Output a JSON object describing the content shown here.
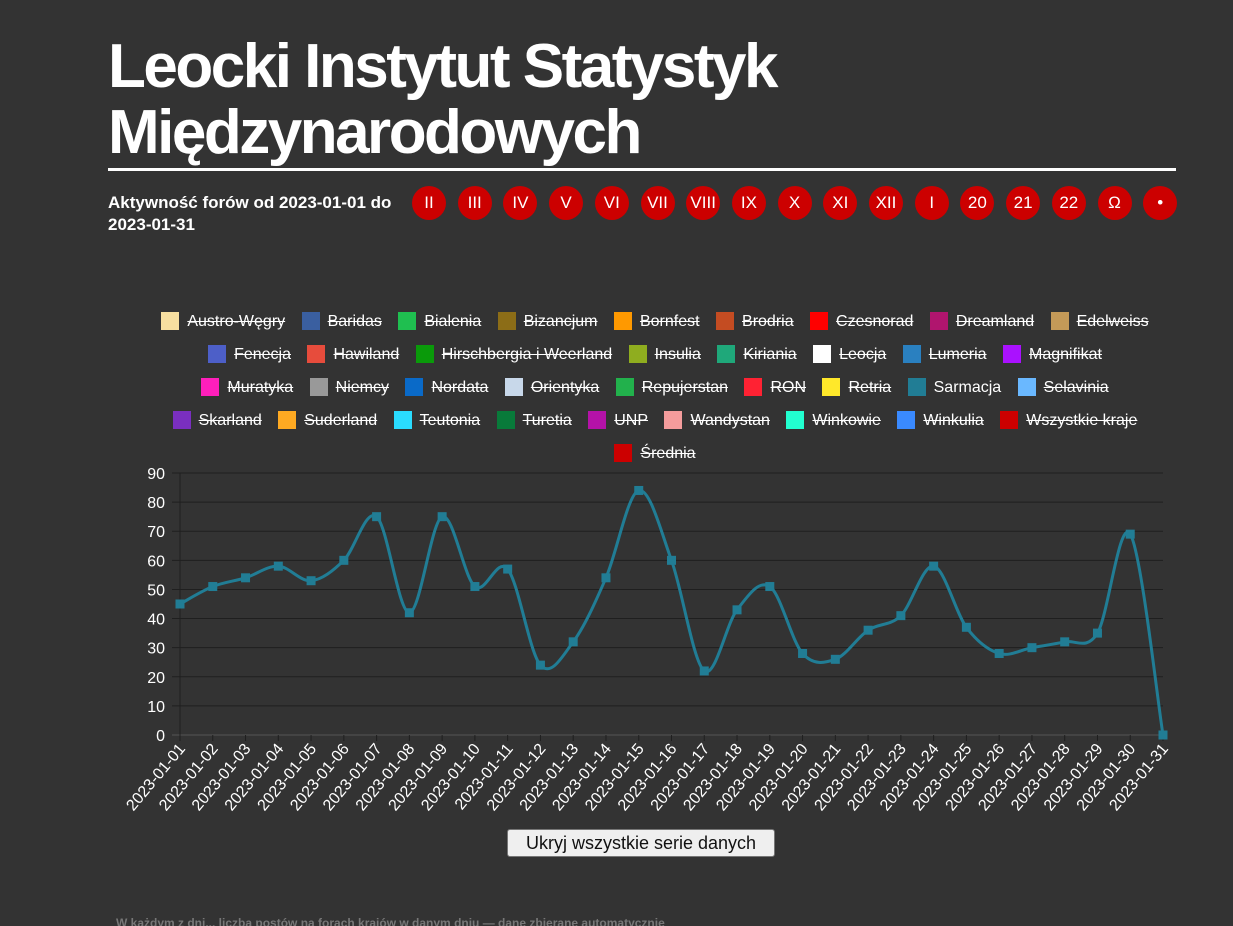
{
  "header": {
    "title_line1": "Leocki Instytut Statystyk",
    "title_line2": "Międzynarodowych",
    "subtitle": "Aktywność forów od 2023-01-01 do 2023-01-31"
  },
  "nav": {
    "items": [
      "II",
      "III",
      "IV",
      "V",
      "VI",
      "VII",
      "VIII",
      "IX",
      "X",
      "XI",
      "XII",
      "I",
      "20",
      "21",
      "22",
      "Ω",
      "•"
    ]
  },
  "colors": {
    "background": "#333333",
    "nav_red": "#cc0000",
    "grid": "#262626",
    "series_line": "#217d95"
  },
  "hide_all_label": "Ukryj wszystkie serie danych",
  "footer_text": "W każdym z dni... liczba postów na forach krajów w danym dniu — dane zbierane automatycznie",
  "chart_data": {
    "type": "line",
    "title": "",
    "xlabel": "",
    "ylabel": "",
    "ylim": [
      0,
      90
    ],
    "yticks": [
      0,
      10,
      20,
      30,
      40,
      50,
      60,
      70,
      80,
      90
    ],
    "grid": true,
    "legend_position": "top",
    "x": [
      "2023-01-01",
      "2023-01-02",
      "2023-01-03",
      "2023-01-04",
      "2023-01-05",
      "2023-01-06",
      "2023-01-07",
      "2023-01-08",
      "2023-01-09",
      "2023-01-10",
      "2023-01-11",
      "2023-01-12",
      "2023-01-13",
      "2023-01-14",
      "2023-01-15",
      "2023-01-16",
      "2023-01-17",
      "2023-01-18",
      "2023-01-19",
      "2023-01-20",
      "2023-01-21",
      "2023-01-22",
      "2023-01-23",
      "2023-01-24",
      "2023-01-25",
      "2023-01-26",
      "2023-01-27",
      "2023-01-28",
      "2023-01-29",
      "2023-01-30",
      "2023-01-31"
    ],
    "series": [
      {
        "name": "Sarmacja",
        "color": "#217d95",
        "values": [
          45,
          51,
          54,
          58,
          53,
          60,
          75,
          42,
          75,
          51,
          57,
          24,
          32,
          54,
          84,
          60,
          22,
          43,
          51,
          28,
          26,
          36,
          41,
          58,
          37,
          28,
          30,
          32,
          35,
          69,
          0
        ]
      }
    ],
    "legend": [
      {
        "name": "Austro-Węgry",
        "color": "#f7dfa0",
        "hidden": true
      },
      {
        "name": "Baridas",
        "color": "#3a5fa0",
        "hidden": true
      },
      {
        "name": "Bialenia",
        "color": "#1fbf50",
        "hidden": true
      },
      {
        "name": "Bizancjum",
        "color": "#8c6d17",
        "hidden": true
      },
      {
        "name": "Bornfest",
        "color": "#ff9900",
        "hidden": true
      },
      {
        "name": "Brodria",
        "color": "#c44c22",
        "hidden": true
      },
      {
        "name": "Czesnorad",
        "color": "#ff0000",
        "hidden": true
      },
      {
        "name": "Dreamland",
        "color": "#b0156e",
        "hidden": true
      },
      {
        "name": "Edelweiss",
        "color": "#c49a58",
        "hidden": true
      },
      {
        "name": "Fenecja",
        "color": "#4d5fc8",
        "hidden": true
      },
      {
        "name": "Hawiland",
        "color": "#e74c3c",
        "hidden": true
      },
      {
        "name": "Hirschbergia i Weerland",
        "color": "#0a9a0a",
        "hidden": true
      },
      {
        "name": "Insulia",
        "color": "#8fad1f",
        "hidden": true
      },
      {
        "name": "Kiriania",
        "color": "#1fa87a",
        "hidden": true
      },
      {
        "name": "Leocja",
        "color": "#ffffff",
        "hidden": true
      },
      {
        "name": "Lumeria",
        "color": "#2a80c0",
        "hidden": true
      },
      {
        "name": "Magnifikat",
        "color": "#aa11ff",
        "hidden": true
      },
      {
        "name": "Muratyka",
        "color": "#ff1fbb",
        "hidden": true
      },
      {
        "name": "Niemcy",
        "color": "#999999",
        "hidden": true
      },
      {
        "name": "Nordata",
        "color": "#0a6ac8",
        "hidden": true
      },
      {
        "name": "Orientyka",
        "color": "#c8d8ea",
        "hidden": true
      },
      {
        "name": "Repujerstan",
        "color": "#22b14c",
        "hidden": true
      },
      {
        "name": "RON",
        "color": "#ff2233",
        "hidden": true
      },
      {
        "name": "Retria",
        "color": "#ffe82a",
        "hidden": true
      },
      {
        "name": "Sarmacja",
        "color": "#217d95",
        "hidden": false
      },
      {
        "name": "Selavinia",
        "color": "#6ab8ff",
        "hidden": true
      },
      {
        "name": "Skarland",
        "color": "#7a2fc0",
        "hidden": true
      },
      {
        "name": "Suderland",
        "color": "#ffaa22",
        "hidden": true
      },
      {
        "name": "Teutonia",
        "color": "#2adcff",
        "hidden": true
      },
      {
        "name": "Turetia",
        "color": "#087a3a",
        "hidden": true
      },
      {
        "name": "UNP",
        "color": "#b412a8",
        "hidden": true
      },
      {
        "name": "Wandystan",
        "color": "#f49c9c",
        "hidden": true
      },
      {
        "name": "Winkowie",
        "color": "#22ffd0",
        "hidden": true
      },
      {
        "name": "Winkulia",
        "color": "#3a8aff",
        "hidden": true
      },
      {
        "name": "Wszystkie kraje",
        "color": "#cc0000",
        "hidden": true
      },
      {
        "name": "Średnia",
        "color": "#cc0000",
        "hidden": true
      }
    ]
  }
}
